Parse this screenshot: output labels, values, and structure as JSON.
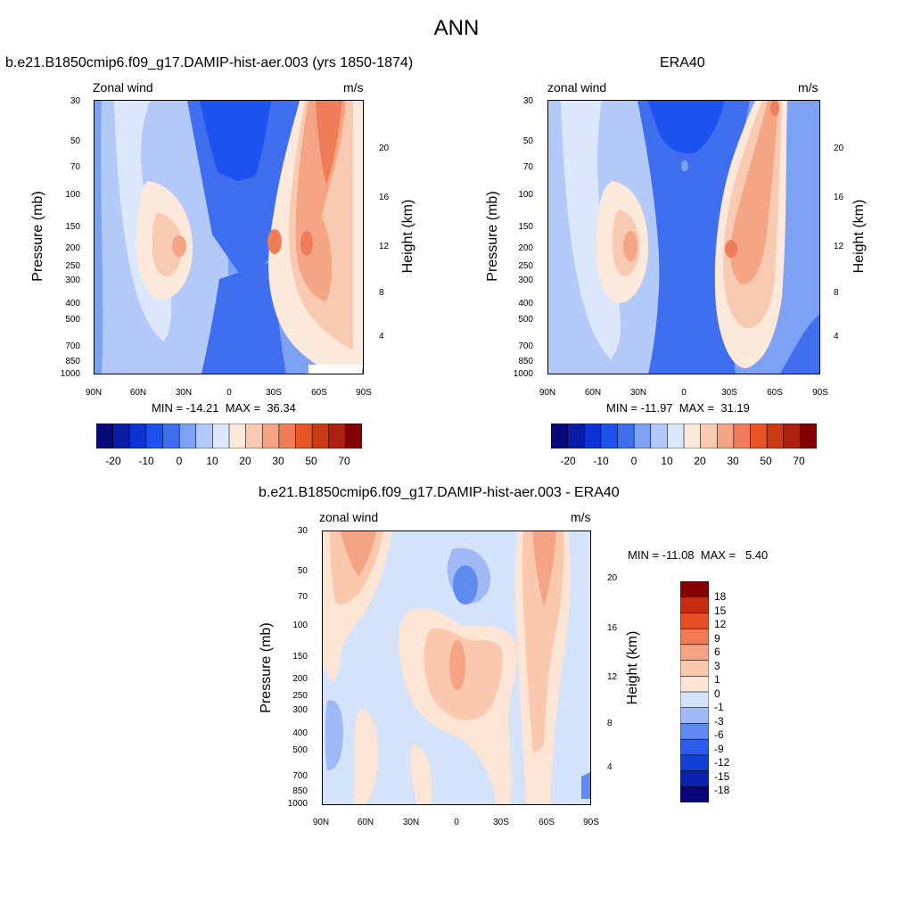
{
  "page_title": "ANN",
  "colors": {
    "abs_palette": [
      "#08097a",
      "#0b1ca6",
      "#0d33d6",
      "#1c52ee",
      "#3f6fee",
      "#7ea2f3",
      "#b3c9f7",
      "#dbe8fb",
      "#fde9dc",
      "#f9cab2",
      "#f5a484",
      "#f07d59",
      "#e85527",
      "#cc3a14",
      "#ae2010",
      "#820000"
    ],
    "diff_palette": [
      "#06067a",
      "#0b22b0",
      "#1040d8",
      "#2b5cee",
      "#5f8bf1",
      "#9fb9f6",
      "#d4e2fa",
      "#fde5d6",
      "#f9c8ad",
      "#f4a482",
      "#f07a54",
      "#e84d21",
      "#c62c10",
      "#860202"
    ]
  },
  "panels": [
    {
      "title": "b.e21.B1850cmip6.f09_g17.DAMIP-hist-aer.003 (yrs 1850-1874)",
      "left_label": "Zonal wind",
      "right_label": "m/s",
      "y_left_title": "Pressure (mb)",
      "y_right_title": "Height (km)",
      "min_max": "MIN = -14.21  MAX =  36.34",
      "colorbar_labels": [
        "-20",
        "-10",
        "0",
        "10",
        "20",
        "30",
        "50",
        "70"
      ]
    },
    {
      "title": "ERA40",
      "left_label": "zonal wind",
      "right_label": "m/s",
      "y_left_title": "Pressure (mb)",
      "y_right_title": "Height (km)",
      "min_max": "MIN = -11.97  MAX =  31.19",
      "colorbar_labels": [
        "-20",
        "-10",
        "0",
        "10",
        "20",
        "30",
        "50",
        "70"
      ]
    },
    {
      "title": "b.e21.B1850cmip6.f09_g17.DAMIP-hist-aer.003 - ERA40",
      "left_label": "zonal wind",
      "right_label": "m/s",
      "y_left_title": "Pressure (mb)",
      "y_right_title": "Height (km)",
      "min_max": "MIN = -11.08  MAX =   5.40",
      "colorbar_labels": [
        "18",
        "15",
        "12",
        "9",
        "6",
        "3",
        "1",
        "0",
        "-1",
        "-3",
        "-6",
        "-9",
        "-12",
        "-15",
        "-18"
      ]
    }
  ],
  "chart_data": [
    {
      "type": "heatmap",
      "title": "b.e21.B1850cmip6.f09_g17.DAMIP-hist-aer.003 (yrs 1850-1874)",
      "xlabel": "",
      "ylabel": "Pressure (mb)",
      "y2label": "Height (km)",
      "x_ticks": [
        "90N",
        "60N",
        "30N",
        "0",
        "30S",
        "60S",
        "90S"
      ],
      "y_ticks": [
        "30",
        "50",
        "70",
        "100",
        "150",
        "200",
        "250",
        "300",
        "400",
        "500",
        "700",
        "850",
        "1000"
      ],
      "y_scale": "log",
      "ylim": [
        1000,
        30
      ],
      "y2_ticks": [
        "4",
        "8",
        "12",
        "16",
        "20"
      ],
      "levels": [
        -20,
        -15,
        -10,
        -5,
        0,
        5,
        10,
        15,
        20,
        25,
        30,
        35,
        40,
        50,
        60,
        70
      ],
      "min": -14.21,
      "max": 36.34,
      "features": [
        {
          "kind": "westerly-jet",
          "lat": -50,
          "p": 200,
          "value": 35
        },
        {
          "kind": "westerly-jet",
          "lat": 35,
          "p": 200,
          "value": 22
        },
        {
          "kind": "easterlies",
          "lat": 10,
          "p": 50,
          "value": -12
        }
      ]
    },
    {
      "type": "heatmap",
      "title": "ERA40",
      "xlabel": "",
      "ylabel": "Pressure (mb)",
      "y2label": "Height (km)",
      "x_ticks": [
        "90N",
        "60N",
        "30N",
        "0",
        "30S",
        "60S",
        "90S"
      ],
      "y_ticks": [
        "30",
        "50",
        "70",
        "100",
        "150",
        "200",
        "250",
        "300",
        "400",
        "500",
        "700",
        "850",
        "1000"
      ],
      "y_scale": "log",
      "ylim": [
        1000,
        30
      ],
      "y2_ticks": [
        "4",
        "8",
        "12",
        "16",
        "20"
      ],
      "levels": [
        -20,
        -15,
        -10,
        -5,
        0,
        5,
        10,
        15,
        20,
        25,
        30,
        35,
        40,
        50,
        60,
        70
      ],
      "min": -11.97,
      "max": 31.19,
      "features": [
        {
          "kind": "westerly-jet",
          "lat": -30,
          "p": 200,
          "value": 30
        },
        {
          "kind": "westerly-jet",
          "lat": 32,
          "p": 200,
          "value": 25
        },
        {
          "kind": "easterlies",
          "lat": 5,
          "p": 300,
          "value": -8
        }
      ]
    },
    {
      "type": "heatmap",
      "title": "b.e21.B1850cmip6.f09_g17.DAMIP-hist-aer.003 - ERA40",
      "xlabel": "",
      "ylabel": "Pressure (mb)",
      "y2label": "Height (km)",
      "x_ticks": [
        "90N",
        "60N",
        "30N",
        "0",
        "30S",
        "60S",
        "90S"
      ],
      "y_ticks": [
        "30",
        "50",
        "70",
        "100",
        "150",
        "200",
        "250",
        "300",
        "400",
        "500",
        "700",
        "850",
        "1000"
      ],
      "y_scale": "log",
      "ylim": [
        1000,
        30
      ],
      "y2_ticks": [
        "4",
        "8",
        "12",
        "16",
        "20"
      ],
      "levels": [
        -18,
        -15,
        -12,
        -9,
        -6,
        -3,
        -1,
        0,
        1,
        3,
        6,
        9,
        12,
        15,
        18
      ],
      "min": -11.08,
      "max": 5.4,
      "features": [
        {
          "kind": "positive-difference",
          "lat": -60,
          "p": 50,
          "value": 4
        },
        {
          "kind": "positive-difference",
          "lat": 65,
          "p": 50,
          "value": 4
        },
        {
          "kind": "positive-difference",
          "lat": 0,
          "p": 150,
          "value": 5
        },
        {
          "kind": "negative-difference",
          "lat": 0,
          "p": 70,
          "value": -6
        }
      ]
    }
  ]
}
